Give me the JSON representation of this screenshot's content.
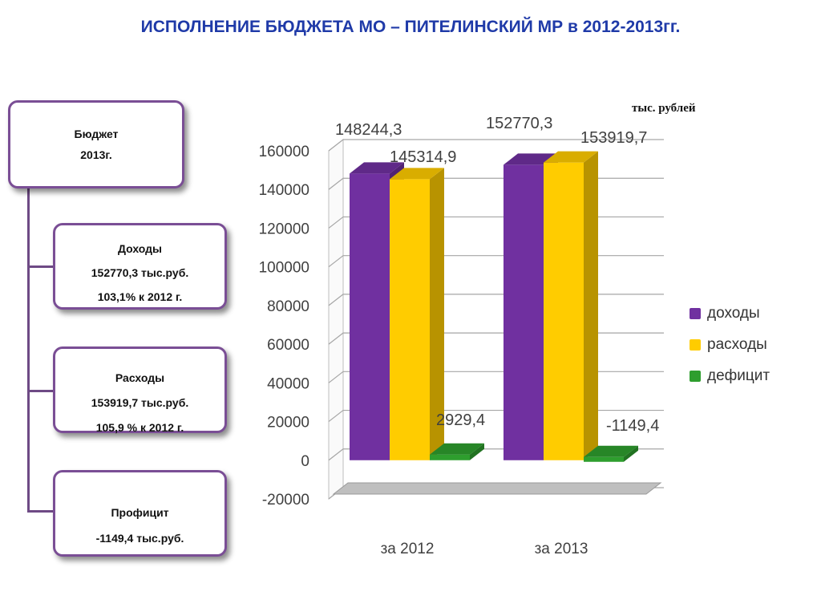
{
  "title": "ИСПОЛНЕНИЕ БЮДЖЕТА МО – ПИТЕЛИНСКИЙ МР в  2012-2013гг.",
  "units": "тыс. рублей",
  "boxes": {
    "budget": {
      "line1": "Бюджет",
      "line2": "2013г."
    },
    "income": {
      "line1": "Доходы",
      "line2": "152770,3 тыс.руб.",
      "line3": "103,1% к 2012 г."
    },
    "expense": {
      "line1": "Расходы",
      "line2": "153919,7 тыс.руб.",
      "line3": "105,9 % к 2012 г."
    },
    "profit": {
      "line1": "Профицит",
      "line2": "-1149,4 тыс.руб."
    }
  },
  "chart_data": {
    "type": "bar",
    "categories": [
      "за 2012",
      "за 2013"
    ],
    "series": [
      {
        "name": "доходы",
        "values": [
          148244.3,
          152770.3
        ],
        "labels": [
          "148244,3",
          "152770,3"
        ],
        "color": "#7030a0"
      },
      {
        "name": "расходы",
        "values": [
          145314.9,
          153919.7
        ],
        "labels": [
          "145314,9",
          "153919,7"
        ],
        "color": "#ffcc00"
      },
      {
        "name": "дефицит",
        "values": [
          2929.4,
          -1149.4
        ],
        "labels": [
          "2929,4",
          "-1149,4"
        ],
        "color": "#2e9e2e"
      }
    ],
    "ylim": [
      -20000,
      160000
    ],
    "yticks": [
      "-20000",
      "0",
      "20000",
      "40000",
      "60000",
      "80000",
      "100000",
      "120000",
      "140000",
      "160000"
    ],
    "grid": true,
    "legend": "right",
    "style": "3d"
  }
}
